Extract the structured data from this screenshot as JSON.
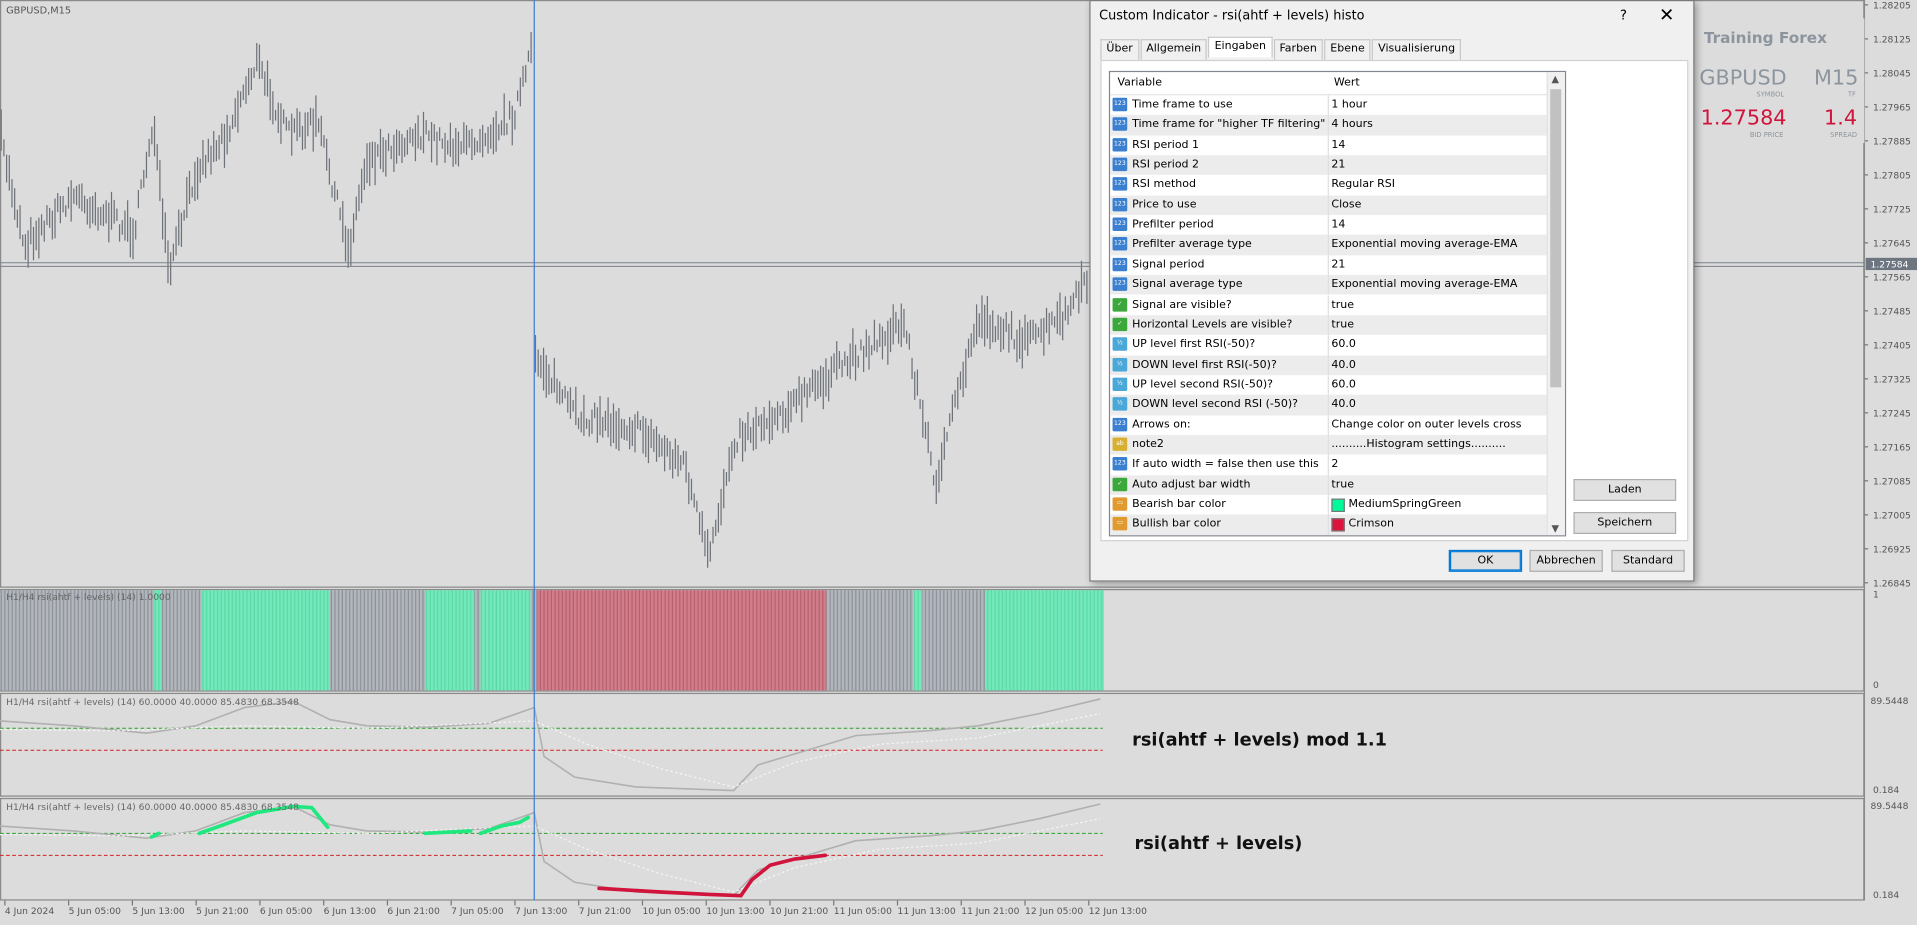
{
  "chart": {
    "symbol": "GBPUSD,M15",
    "price_labels": [
      "1.28205",
      "1.28125",
      "1.28045",
      "1.27965",
      "1.27885",
      "1.27805",
      "1.27725",
      "1.27645",
      "1.27565",
      "1.27485",
      "1.27405",
      "1.27325",
      "1.27245",
      "1.27165",
      "1.27085",
      "1.27005",
      "1.26925",
      "1.26845"
    ],
    "current_price": "1.27584",
    "time_labels": [
      "4 Jun 2024",
      "5 Jun 05:00",
      "5 Jun 13:00",
      "5 Jun 21:00",
      "6 Jun 05:00",
      "6 Jun 13:00",
      "6 Jun 21:00",
      "7 Jun 05:00",
      "7 Jun 13:00",
      "7 Jun 21:00",
      "10 Jun 05:00",
      "10 Jun 13:00",
      "10 Jun 21:00",
      "11 Jun 05:00",
      "11 Jun 13:00",
      "11 Jun 21:00",
      "12 Jun 05:00",
      "12 Jun 13:00"
    ]
  },
  "indicators": [
    {
      "label": "H1/H4 rsi(ahtf + levels) (14) 1.0000",
      "scale_max": "1",
      "scale_min": "0"
    },
    {
      "label": "H1/H4 rsi(ahtf + levels) (14) 60.0000 40.0000 85.4830 68.3548",
      "scale_max": "89.5448",
      "scale_min": "0.184",
      "caption": "rsi(ahtf + levels) mod 1.1"
    },
    {
      "label": "H1/H4 rsi(ahtf + levels) (14) 60.0000 40.0000 85.4830 68.3548",
      "scale_max": "89.5448",
      "scale_min": "0.184",
      "caption": "rsi(ahtf + levels)"
    }
  ],
  "info_panel": {
    "title": "Training Forex",
    "symbol": "GBPUSD",
    "symbol_caption": "SYMBOL",
    "timeframe": "M15",
    "timeframe_caption": "TF",
    "bid": "1.27584",
    "bid_caption": "BID PRICE",
    "spread": "1.4",
    "spread_caption": "SPREAD"
  },
  "dialog": {
    "title": "Custom Indicator - rsi(ahtf + levels) histo",
    "help": "?",
    "tabs": [
      "Über",
      "Allgemein",
      "Eingaben",
      "Farben",
      "Ebene",
      "Visualisierung"
    ],
    "headers": [
      "Variable",
      "Wert"
    ],
    "rows": [
      [
        "Time frame to use",
        "1 hour"
      ],
      [
        "Time frame for \"higher TF filtering\"",
        "4 hours"
      ],
      [
        "RSI period 1",
        "14"
      ],
      [
        "RSI period 2",
        "21"
      ],
      [
        "RSI method",
        "Regular RSI"
      ],
      [
        "Price to use",
        "Close"
      ],
      [
        "Prefilter period",
        "14"
      ],
      [
        "Prefilter average type",
        "Exponential moving average-EMA"
      ],
      [
        "Signal period",
        "21"
      ],
      [
        "Signal average type",
        "Exponential moving average-EMA"
      ],
      [
        "Signal are visible?",
        "true"
      ],
      [
        "Horizontal Levels are visible?",
        "true"
      ],
      [
        "UP level first RSI(-50)?",
        "60.0"
      ],
      [
        "DOWN level first RSI(-50)?",
        "40.0"
      ],
      [
        "UP level second RSI(-50)?",
        "60.0"
      ],
      [
        "DOWN level second RSI (-50)?",
        "40.0"
      ],
      [
        "Arrows on:",
        "Change color on outer levels cross"
      ],
      [
        "note2",
        "..........Histogram settings.........."
      ],
      [
        "If auto width = false then use this",
        "2"
      ],
      [
        "Auto adjust bar width",
        "true"
      ],
      [
        "Bearish bar color",
        "MediumSpringGreen"
      ],
      [
        "Bullish bar color",
        "Crimson"
      ]
    ],
    "side_buttons": [
      "Laden",
      "Speichern"
    ],
    "buttons": [
      "OK",
      "Abbrechen",
      "Standard"
    ]
  }
}
